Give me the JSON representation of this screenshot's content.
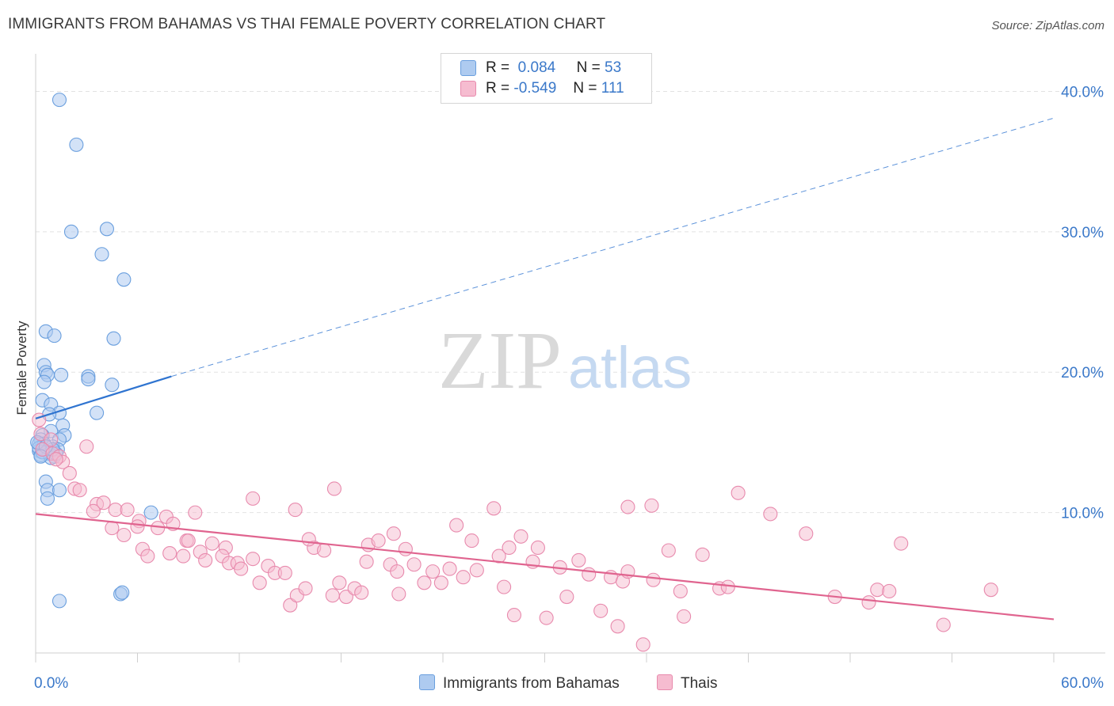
{
  "title": "IMMIGRANTS FROM BAHAMAS VS THAI FEMALE POVERTY CORRELATION CHART",
  "source": "Source: ZipAtlas.com",
  "watermark": {
    "zip": "ZIP",
    "atlas": "atlas"
  },
  "legend": {
    "rows": [
      {
        "r_label": "R =",
        "r_value": "0.084",
        "n_label": "N =",
        "n_value": "53"
      },
      {
        "r_label": "R =",
        "r_value": "-0.549",
        "n_label": "N =",
        "n_value": "111"
      }
    ]
  },
  "bottom_legend": [
    "Immigrants from Bahamas",
    "Thais"
  ],
  "colors": {
    "blue_fill": "#aecbf0",
    "blue_stroke": "#6a9fde",
    "blue_line": "#2f74d0",
    "pink_fill": "#f6bcd0",
    "pink_stroke": "#e88aad",
    "pink_line": "#e0648f",
    "axis_label": "#3a78c9",
    "grid": "#e2e2e2"
  },
  "chart_data": {
    "type": "scatter",
    "title": "IMMIGRANTS FROM BAHAMAS VS THAI FEMALE POVERTY CORRELATION CHART",
    "xlabel": "",
    "ylabel": "Female Poverty",
    "xlim": [
      0,
      60
    ],
    "ylim": [
      0,
      42
    ],
    "x_tick_labels": [
      "0.0%",
      "60.0%"
    ],
    "y_ticks": [
      10,
      20,
      30,
      40
    ],
    "y_tick_labels": [
      "10.0%",
      "20.0%",
      "30.0%",
      "40.0%"
    ],
    "grid": true,
    "legend_position": "top-center",
    "series": [
      {
        "name": "Immigrants from Bahamas",
        "r": 0.084,
        "n": 53,
        "trend_solid": [
          [
            0,
            16.7
          ],
          [
            8,
            19.7
          ]
        ],
        "trend_dashed": [
          [
            8,
            19.7
          ],
          [
            60,
            38.1
          ]
        ],
        "points": [
          [
            1.4,
            39.4
          ],
          [
            2.4,
            36.2
          ],
          [
            2.1,
            30.0
          ],
          [
            4.2,
            30.2
          ],
          [
            3.9,
            28.4
          ],
          [
            5.2,
            26.6
          ],
          [
            0.6,
            22.9
          ],
          [
            1.1,
            22.6
          ],
          [
            4.6,
            22.4
          ],
          [
            0.5,
            20.5
          ],
          [
            0.6,
            20.0
          ],
          [
            0.7,
            19.8
          ],
          [
            1.5,
            19.8
          ],
          [
            3.1,
            19.7
          ],
          [
            0.5,
            19.3
          ],
          [
            3.1,
            19.5
          ],
          [
            4.5,
            19.1
          ],
          [
            0.4,
            18.0
          ],
          [
            0.9,
            17.7
          ],
          [
            1.4,
            17.1
          ],
          [
            0.8,
            17.0
          ],
          [
            3.6,
            17.1
          ],
          [
            1.6,
            16.2
          ],
          [
            0.9,
            15.8
          ],
          [
            0.4,
            15.5
          ],
          [
            1.7,
            15.5
          ],
          [
            0.3,
            15.2
          ],
          [
            1.4,
            15.2
          ],
          [
            0.2,
            14.9
          ],
          [
            0.5,
            14.9
          ],
          [
            1.0,
            14.7
          ],
          [
            0.2,
            14.4
          ],
          [
            1.3,
            14.5
          ],
          [
            0.7,
            14.3
          ],
          [
            0.3,
            14.1
          ],
          [
            1.1,
            14.0
          ],
          [
            0.2,
            14.6
          ],
          [
            0.8,
            14.2
          ],
          [
            0.9,
            13.9
          ],
          [
            1.2,
            14.2
          ],
          [
            0.4,
            14.3
          ],
          [
            0.6,
            12.2
          ],
          [
            0.7,
            11.6
          ],
          [
            1.4,
            11.6
          ],
          [
            0.7,
            11.0
          ],
          [
            6.8,
            10.0
          ],
          [
            5.0,
            4.2
          ],
          [
            5.1,
            4.3
          ],
          [
            1.4,
            3.7
          ],
          [
            0.1,
            15.0
          ],
          [
            1.0,
            14.5
          ],
          [
            0.6,
            14.7
          ],
          [
            0.3,
            14.0
          ]
        ]
      },
      {
        "name": "Thais",
        "r": -0.549,
        "n": 111,
        "trend": [
          [
            0,
            9.9
          ],
          [
            60,
            2.4
          ]
        ],
        "points": [
          [
            0.2,
            16.6
          ],
          [
            0.3,
            15.6
          ],
          [
            0.9,
            15.2
          ],
          [
            0.4,
            14.5
          ],
          [
            1.0,
            14.2
          ],
          [
            1.4,
            14.0
          ],
          [
            1.6,
            13.6
          ],
          [
            1.2,
            13.8
          ],
          [
            3.0,
            14.7
          ],
          [
            2.0,
            12.8
          ],
          [
            2.3,
            11.7
          ],
          [
            2.6,
            11.6
          ],
          [
            3.6,
            10.6
          ],
          [
            4.0,
            10.7
          ],
          [
            3.4,
            10.1
          ],
          [
            4.7,
            10.2
          ],
          [
            5.4,
            10.2
          ],
          [
            6.1,
            9.4
          ],
          [
            7.7,
            9.7
          ],
          [
            9.4,
            10.0
          ],
          [
            4.5,
            8.9
          ],
          [
            5.2,
            8.4
          ],
          [
            6.0,
            9.0
          ],
          [
            7.2,
            8.9
          ],
          [
            8.1,
            9.2
          ],
          [
            8.9,
            8.0
          ],
          [
            9.0,
            8.0
          ],
          [
            10.4,
            7.8
          ],
          [
            11.2,
            7.5
          ],
          [
            6.3,
            7.4
          ],
          [
            6.6,
            6.9
          ],
          [
            7.9,
            7.1
          ],
          [
            8.7,
            6.9
          ],
          [
            9.7,
            7.2
          ],
          [
            10.0,
            6.6
          ],
          [
            11.0,
            6.9
          ],
          [
            11.4,
            6.4
          ],
          [
            11.9,
            6.4
          ],
          [
            12.1,
            6.0
          ],
          [
            12.8,
            6.7
          ],
          [
            13.2,
            5.0
          ],
          [
            13.7,
            6.2
          ],
          [
            14.1,
            5.7
          ],
          [
            14.7,
            5.7
          ],
          [
            15.0,
            3.4
          ],
          [
            15.4,
            4.1
          ],
          [
            15.9,
            4.6
          ],
          [
            16.4,
            7.5
          ],
          [
            16.1,
            8.1
          ],
          [
            17.0,
            7.3
          ],
          [
            17.5,
            4.1
          ],
          [
            17.9,
            5.0
          ],
          [
            18.3,
            4.0
          ],
          [
            18.8,
            4.6
          ],
          [
            19.2,
            4.3
          ],
          [
            19.5,
            6.5
          ],
          [
            19.6,
            7.7
          ],
          [
            20.2,
            8.0
          ],
          [
            20.9,
            6.3
          ],
          [
            21.3,
            5.8
          ],
          [
            21.4,
            4.2
          ],
          [
            21.8,
            7.4
          ],
          [
            22.3,
            6.3
          ],
          [
            22.9,
            5.0
          ],
          [
            23.4,
            5.8
          ],
          [
            23.9,
            5.0
          ],
          [
            24.4,
            6.0
          ],
          [
            24.8,
            9.1
          ],
          [
            25.2,
            5.4
          ],
          [
            25.7,
            8.0
          ],
          [
            26.0,
            5.9
          ],
          [
            27.0,
            10.3
          ],
          [
            27.3,
            6.9
          ],
          [
            27.6,
            4.7
          ],
          [
            27.9,
            7.5
          ],
          [
            28.2,
            2.7
          ],
          [
            29.3,
            6.5
          ],
          [
            29.6,
            7.5
          ],
          [
            30.1,
            2.5
          ],
          [
            30.9,
            6.1
          ],
          [
            31.3,
            4.0
          ],
          [
            32.0,
            6.6
          ],
          [
            32.6,
            5.6
          ],
          [
            33.3,
            3.0
          ],
          [
            33.9,
            5.4
          ],
          [
            34.3,
            1.9
          ],
          [
            34.6,
            5.1
          ],
          [
            34.9,
            5.8
          ],
          [
            35.8,
            0.6
          ],
          [
            36.4,
            5.2
          ],
          [
            37.3,
            7.3
          ],
          [
            38.0,
            4.4
          ],
          [
            38.2,
            2.6
          ],
          [
            39.3,
            7.0
          ],
          [
            40.3,
            4.6
          ],
          [
            40.8,
            4.7
          ],
          [
            41.4,
            11.4
          ],
          [
            17.6,
            11.7
          ],
          [
            12.8,
            11.0
          ],
          [
            15.3,
            10.2
          ],
          [
            21.1,
            8.5
          ],
          [
            28.6,
            8.3
          ],
          [
            34.9,
            10.4
          ],
          [
            36.3,
            10.5
          ],
          [
            43.3,
            9.9
          ],
          [
            45.4,
            8.5
          ],
          [
            47.1,
            4.0
          ],
          [
            49.1,
            3.6
          ],
          [
            49.6,
            4.5
          ],
          [
            50.3,
            4.4
          ],
          [
            51.0,
            7.8
          ],
          [
            53.5,
            2.0
          ],
          [
            56.3,
            4.5
          ]
        ]
      }
    ]
  }
}
